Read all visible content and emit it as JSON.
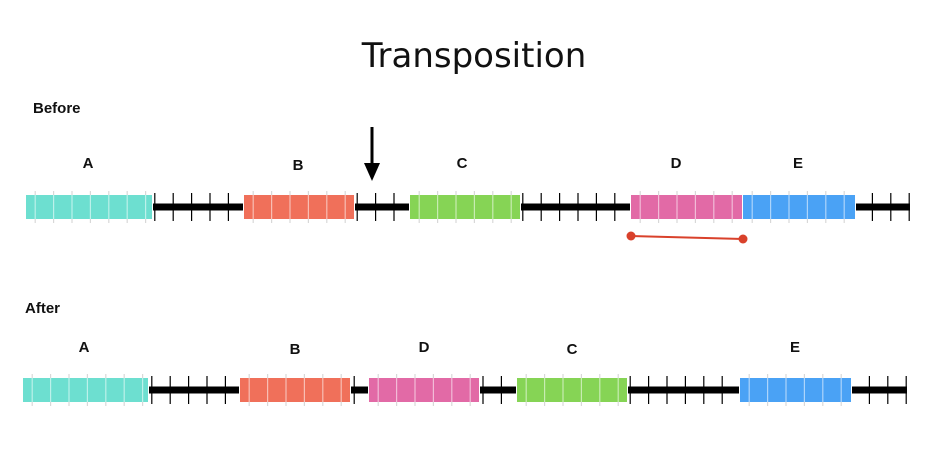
{
  "title": "Transposition",
  "before": {
    "label": "Before",
    "segments": [
      {
        "name": "A",
        "color": "#6ddfd0"
      },
      {
        "name": "B",
        "color": "#f0705a"
      },
      {
        "name": "C",
        "color": "#86d455"
      },
      {
        "name": "D",
        "color": "#e26aa6"
      },
      {
        "name": "E",
        "color": "#4aa2f5"
      }
    ]
  },
  "after": {
    "label": "After",
    "segments": [
      {
        "name": "A",
        "color": "#6ddfd0"
      },
      {
        "name": "B",
        "color": "#f0705a"
      },
      {
        "name": "D",
        "color": "#e26aa6"
      },
      {
        "name": "C",
        "color": "#86d455"
      },
      {
        "name": "E",
        "color": "#4aa2f5"
      }
    ]
  },
  "colors": {
    "backbone": "#000000",
    "tick": "#000000",
    "segment_tick": "#d8d8d8",
    "bracket": "#d9412b",
    "arrow": "#000000"
  }
}
